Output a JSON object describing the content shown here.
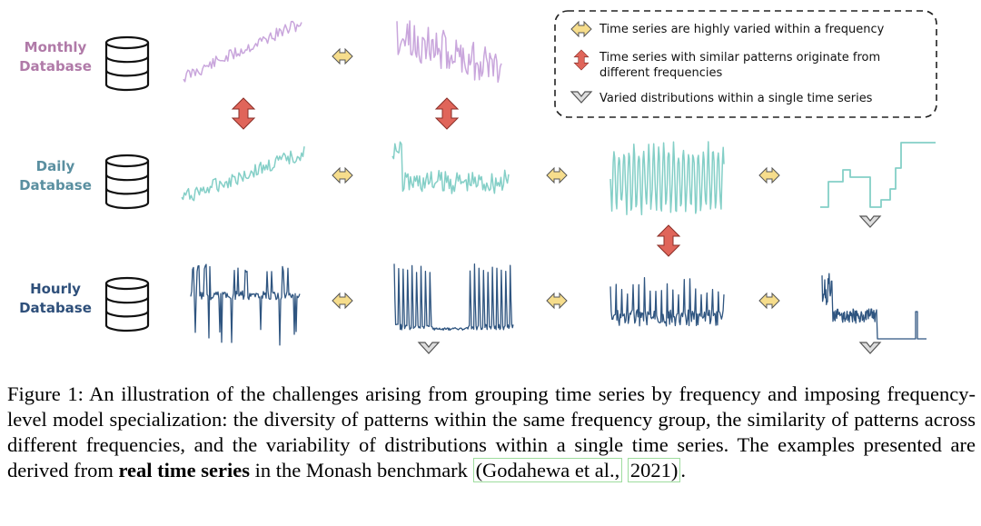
{
  "databases": [
    {
      "label_line1": "Monthly",
      "label_line2": "Database",
      "color": "#b07aa8"
    },
    {
      "label_line1": "Daily",
      "label_line2": "Database",
      "color": "#5a8fa0"
    },
    {
      "label_line1": "Hourly",
      "label_line2": "Database",
      "color": "#2e4f7a"
    }
  ],
  "series_colors": {
    "monthly": "#c9a6dc",
    "daily": "#84cfc7",
    "hourly": "#2f5580"
  },
  "arrow_colors": {
    "horizontal": "#f6dd8c",
    "vertical": "#e0655a",
    "chevron": "#dddddd"
  },
  "legend": {
    "item1": "Time series are highly varied within a frequency",
    "item2_line1": "Time series with similar patterns originate from",
    "item2_line2": "different frequencies",
    "item3": "Varied distributions within a single time series"
  },
  "caption": {
    "part1": "Figure 1: An illustration of the challenges arising from grouping time series by frequency and imposing frequency-level model specialization: the diversity of patterns within the same frequency group, the similarity of patterns across different frequencies, and the variability of distributions within a single time series. The examples presented are derived from ",
    "bold": "real time series",
    "part2": " in the Monash benchmark ",
    "ref_author": "(Godahewa et al.,",
    "ref_year": "2021)",
    "end": "."
  }
}
